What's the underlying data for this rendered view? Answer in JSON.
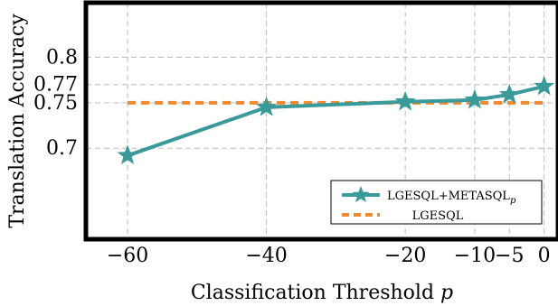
{
  "chart_data": {
    "type": "line",
    "xlabel": "Classification Threshold p",
    "ylabel": "Translation Accuracy",
    "xlim": [
      -66,
      2
    ],
    "ylim": [
      0.6,
      0.86
    ],
    "xticks": [
      -60,
      -40,
      -20,
      -10,
      -5,
      0
    ],
    "xtick_labels": [
      "−60",
      "−40",
      "−20",
      "−10",
      "−5",
      "0"
    ],
    "yticks": [
      0.7,
      0.75,
      0.77,
      0.8
    ],
    "ytick_labels": [
      "0.7",
      "0.75",
      "0.77",
      "0.8"
    ],
    "grid": true,
    "legend_position": "bottom-right",
    "series": [
      {
        "name": "LGESQL+METASQL",
        "name_subscript": "p",
        "style": "solid-star",
        "color": "#3a9999",
        "x": [
          -60,
          -40,
          -20,
          -10,
          -5,
          0
        ],
        "y": [
          0.692,
          0.745,
          0.751,
          0.753,
          0.759,
          0.768
        ]
      },
      {
        "name": "LGESQL",
        "style": "dashed",
        "color": "#f08a30",
        "x": [
          -60,
          0
        ],
        "y": [
          0.75,
          0.75
        ]
      }
    ]
  }
}
